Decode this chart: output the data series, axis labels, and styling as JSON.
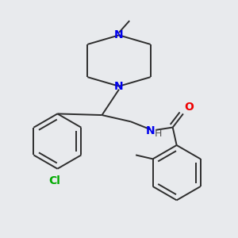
{
  "bg_color": "#e8eaed",
  "bond_color": "#2d2d2d",
  "N_color": "#0000ee",
  "O_color": "#ee0000",
  "Cl_color": "#00aa00",
  "H_color": "#555555",
  "line_width": 1.4,
  "font_size": 10,
  "fig_size": [
    3.0,
    3.0
  ],
  "dpi": 100,
  "xlim": [
    0.05,
    0.95
  ],
  "ylim": [
    0.05,
    0.95
  ]
}
